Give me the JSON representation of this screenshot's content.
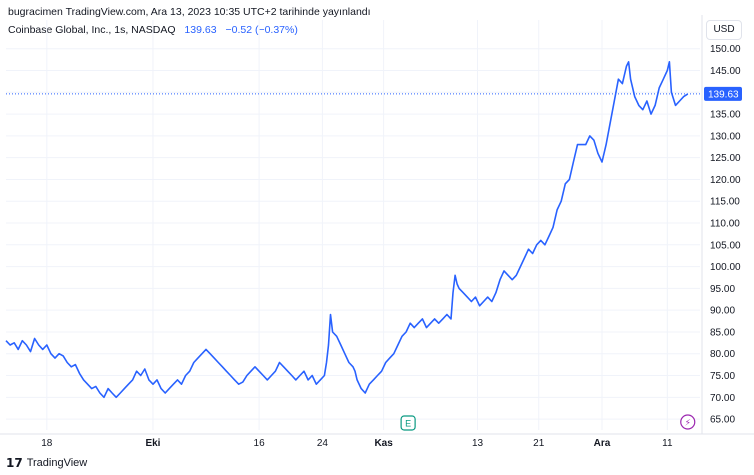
{
  "header": {
    "publish_line": "bugracimen TradingView.com, Ara 13, 2023 10:35 UTC+2 tarihinde yayınlandı"
  },
  "legend": {
    "symbol": "Coinbase Global, Inc., 1s, NASDAQ",
    "price": "139.63",
    "change": "−0.52 (−0.37%)"
  },
  "currency_button": "USD",
  "footer": {
    "logo_text": "TradingView",
    "logo_mark": "17"
  },
  "markers": {
    "earnings": "E",
    "dividend": "⚡"
  },
  "colors": {
    "line": "#2962ff",
    "grid": "#f0f3fa",
    "price_label_bg": "#2962ff",
    "earnings": "#089981",
    "event": "#9c27b0"
  },
  "chart_data": {
    "type": "line",
    "series": [
      {
        "name": "",
        "points": [
          [
            0,
            83
          ],
          [
            2,
            82
          ],
          [
            4,
            82.5
          ],
          [
            6,
            81
          ],
          [
            8,
            83
          ],
          [
            10,
            82
          ],
          [
            12,
            80.5
          ],
          [
            14,
            83.5
          ],
          [
            16,
            82
          ],
          [
            18,
            81
          ],
          [
            20,
            82
          ],
          [
            22,
            80
          ],
          [
            24,
            79
          ],
          [
            26,
            80
          ],
          [
            28,
            79.5
          ],
          [
            30,
            78
          ],
          [
            32,
            77
          ],
          [
            34,
            77.5
          ],
          [
            36,
            75.5
          ],
          [
            38,
            74
          ],
          [
            40,
            73
          ],
          [
            42,
            72
          ],
          [
            44,
            72.5
          ],
          [
            46,
            71
          ],
          [
            48,
            70
          ],
          [
            50,
            72
          ],
          [
            52,
            71
          ],
          [
            54,
            70
          ],
          [
            56,
            71
          ],
          [
            58,
            72
          ],
          [
            60,
            73
          ],
          [
            62,
            74
          ],
          [
            64,
            76
          ],
          [
            66,
            75
          ],
          [
            68,
            76.5
          ],
          [
            70,
            74
          ],
          [
            72,
            73
          ],
          [
            74,
            74
          ],
          [
            76,
            72
          ],
          [
            78,
            71
          ],
          [
            80,
            72
          ],
          [
            82,
            73
          ],
          [
            84,
            74
          ],
          [
            86,
            73
          ],
          [
            88,
            75
          ],
          [
            90,
            76
          ],
          [
            92,
            78
          ],
          [
            94,
            79
          ],
          [
            96,
            80
          ],
          [
            98,
            81
          ],
          [
            100,
            80
          ],
          [
            102,
            79
          ],
          [
            104,
            78
          ],
          [
            106,
            77
          ],
          [
            108,
            76
          ],
          [
            110,
            75
          ],
          [
            112,
            74
          ],
          [
            114,
            73
          ],
          [
            116,
            73.5
          ],
          [
            118,
            75
          ],
          [
            120,
            76
          ],
          [
            122,
            77
          ],
          [
            124,
            76
          ],
          [
            126,
            75
          ],
          [
            128,
            74
          ],
          [
            130,
            75
          ],
          [
            132,
            76
          ],
          [
            134,
            78
          ],
          [
            136,
            77
          ],
          [
            138,
            76
          ],
          [
            140,
            75
          ],
          [
            142,
            74
          ],
          [
            144,
            75
          ],
          [
            146,
            76
          ],
          [
            148,
            74
          ],
          [
            150,
            75
          ],
          [
            152,
            73
          ],
          [
            154,
            74
          ],
          [
            156,
            75
          ],
          [
            157,
            78
          ],
          [
            158,
            82
          ],
          [
            159,
            89
          ],
          [
            160,
            85
          ],
          [
            162,
            84
          ],
          [
            164,
            82
          ],
          [
            166,
            80
          ],
          [
            168,
            78
          ],
          [
            170,
            77
          ],
          [
            171,
            76
          ],
          [
            172,
            74
          ],
          [
            174,
            72
          ],
          [
            176,
            71
          ],
          [
            178,
            73
          ],
          [
            180,
            74
          ],
          [
            182,
            75
          ],
          [
            184,
            76
          ],
          [
            186,
            78
          ],
          [
            188,
            79
          ],
          [
            190,
            80
          ],
          [
            192,
            82
          ],
          [
            194,
            84
          ],
          [
            196,
            85
          ],
          [
            198,
            87
          ],
          [
            200,
            86
          ],
          [
            202,
            87
          ],
          [
            204,
            88
          ],
          [
            206,
            86
          ],
          [
            208,
            87
          ],
          [
            210,
            88
          ],
          [
            212,
            87
          ],
          [
            214,
            88
          ],
          [
            216,
            89
          ],
          [
            218,
            88
          ],
          [
            219,
            94
          ],
          [
            220,
            98
          ],
          [
            221,
            96
          ],
          [
            222,
            95
          ],
          [
            224,
            94
          ],
          [
            226,
            93
          ],
          [
            228,
            92
          ],
          [
            230,
            93
          ],
          [
            232,
            91
          ],
          [
            234,
            92
          ],
          [
            236,
            93
          ],
          [
            238,
            92
          ],
          [
            240,
            94
          ],
          [
            242,
            97
          ],
          [
            244,
            99
          ],
          [
            246,
            98
          ],
          [
            248,
            97
          ],
          [
            250,
            98
          ],
          [
            252,
            100
          ],
          [
            254,
            102
          ],
          [
            256,
            104
          ],
          [
            258,
            103
          ],
          [
            260,
            105
          ],
          [
            262,
            106
          ],
          [
            264,
            105
          ],
          [
            266,
            107
          ],
          [
            268,
            109
          ],
          [
            270,
            113
          ],
          [
            272,
            115
          ],
          [
            274,
            119
          ],
          [
            276,
            120
          ],
          [
            278,
            124
          ],
          [
            280,
            128
          ],
          [
            282,
            128
          ],
          [
            284,
            128
          ],
          [
            286,
            130
          ],
          [
            288,
            129
          ],
          [
            290,
            126
          ],
          [
            292,
            124
          ],
          [
            294,
            128
          ],
          [
            296,
            133
          ],
          [
            298,
            138
          ],
          [
            300,
            143
          ],
          [
            302,
            142
          ],
          [
            304,
            146
          ],
          [
            305,
            147
          ],
          [
            306,
            143
          ],
          [
            308,
            139
          ],
          [
            310,
            137
          ],
          [
            312,
            136
          ],
          [
            314,
            138
          ],
          [
            316,
            135
          ],
          [
            318,
            137
          ],
          [
            320,
            141
          ],
          [
            322,
            143
          ],
          [
            324,
            145
          ],
          [
            325,
            147
          ],
          [
            326,
            140
          ],
          [
            328,
            137
          ],
          [
            330,
            138
          ],
          [
            332,
            139
          ],
          [
            334,
            139.63
          ]
        ]
      }
    ],
    "x_ticks": [
      {
        "label": "18",
        "x": 20,
        "bold": false
      },
      {
        "label": "Eki",
        "x": 72,
        "bold": true
      },
      {
        "label": "16",
        "x": 124,
        "bold": false
      },
      {
        "label": "24",
        "x": 155,
        "bold": false
      },
      {
        "label": "Kas",
        "x": 185,
        "bold": true
      },
      {
        "label": "13",
        "x": 231,
        "bold": false
      },
      {
        "label": "21",
        "x": 261,
        "bold": false
      },
      {
        "label": "Ara",
        "x": 292,
        "bold": true
      },
      {
        "label": "11",
        "x": 324,
        "bold": false
      }
    ],
    "y_ticks": [
      65,
      70,
      75,
      80,
      85,
      90,
      95,
      100,
      105,
      110,
      115,
      120,
      125,
      130,
      135,
      140,
      145,
      150
    ],
    "x_range": [
      0,
      340
    ],
    "ylim": [
      62.5,
      152
    ],
    "last_price": 139.63,
    "earnings_x": 197,
    "event_x": 334,
    "grid": true
  }
}
